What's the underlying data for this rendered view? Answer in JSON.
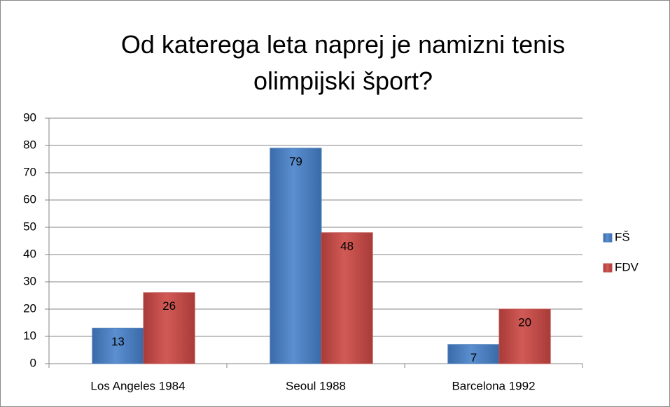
{
  "chart_data": {
    "type": "bar",
    "title": "Od katerega leta naprej je namizni tenis olimpijski šport?",
    "categories": [
      "Los Angeles 1984",
      "Seoul 1988",
      "Barcelona 1992"
    ],
    "series": [
      {
        "name": "FŠ",
        "color": "#4f81bd",
        "values": [
          13,
          79,
          7
        ]
      },
      {
        "name": "FDV",
        "color": "#c0504d",
        "values": [
          26,
          48,
          20
        ]
      }
    ],
    "ylim": [
      0,
      90
    ],
    "yticks": [
      0,
      10,
      20,
      30,
      40,
      50,
      60,
      70,
      80,
      90
    ],
    "grid": true,
    "legend": "right"
  }
}
